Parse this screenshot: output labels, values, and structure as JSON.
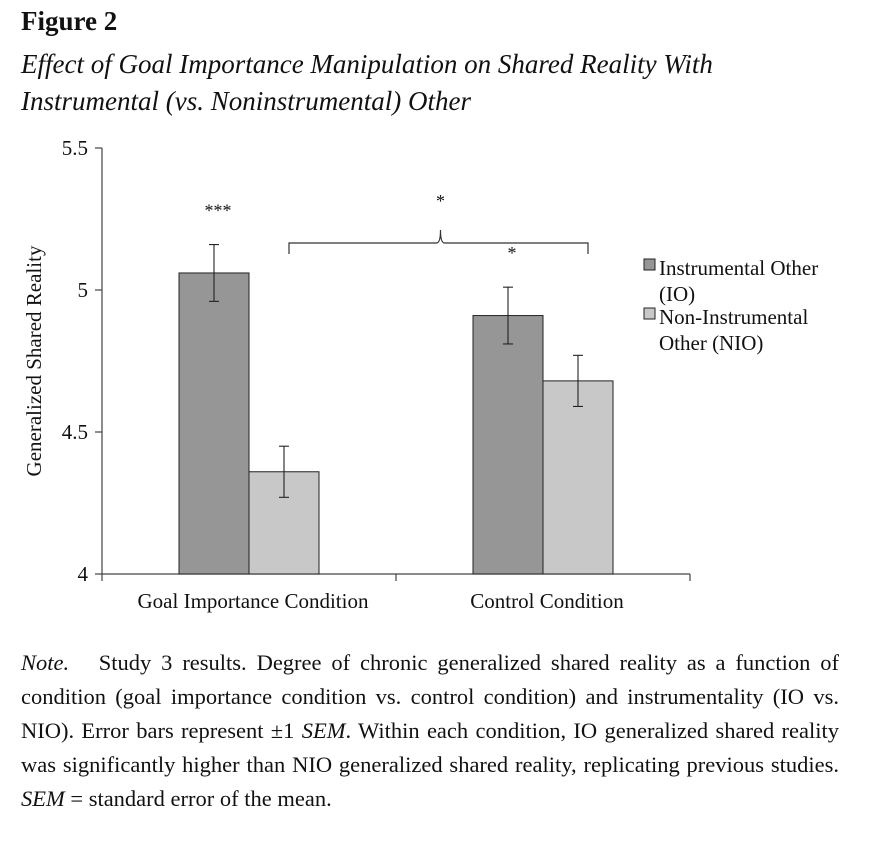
{
  "figure": {
    "label": "Figure 2",
    "title": "Effect of Goal Importance Manipulation on Shared Reality With Instrumental (vs. Noninstrumental) Other"
  },
  "chart_data": {
    "type": "bar",
    "ylabel": "Generalized Shared Reality",
    "xlabel": "",
    "ylim": [
      4,
      5.5
    ],
    "yticks": [
      "4",
      "4.5",
      "5",
      "5.5"
    ],
    "categories": [
      "Goal Importance Condition",
      "Control Condition"
    ],
    "series": [
      {
        "name": "Instrumental Other (IO)",
        "values": [
          5.06,
          4.91
        ],
        "errors": [
          0.1,
          0.1
        ],
        "color": "#969696"
      },
      {
        "name": "Non-Instrumental Other (NIO)",
        "values": [
          4.36,
          4.68
        ],
        "errors": [
          0.09,
          0.09
        ],
        "color": "#c8c8c8"
      }
    ],
    "legend": {
      "placement": "right",
      "lines": [
        [
          "Instrumental Other",
          "(IO)"
        ],
        [
          "Non-Instrumental",
          "Other (NIO)"
        ]
      ]
    },
    "annotations": {
      "within": [
        "***",
        "*"
      ],
      "between": "*"
    },
    "grid": false
  },
  "note": {
    "label": "Note.",
    "parts": [
      {
        "text": "Study 3 results. Degree of chronic generalized shared reality as a function of condition (goal importance condition vs. control condition) and instrumentality (IO vs. NIO). Error bars represent ±1 ",
        "italic": false
      },
      {
        "text": "SEM",
        "italic": true
      },
      {
        "text": ". Within each condition, IO generalized shared reality was significantly higher than NIO generalized shared reality, replicating previous studies. ",
        "italic": false
      },
      {
        "text": "SEM",
        "italic": true
      },
      {
        "text": " = standard error of the mean.",
        "italic": false
      }
    ]
  }
}
